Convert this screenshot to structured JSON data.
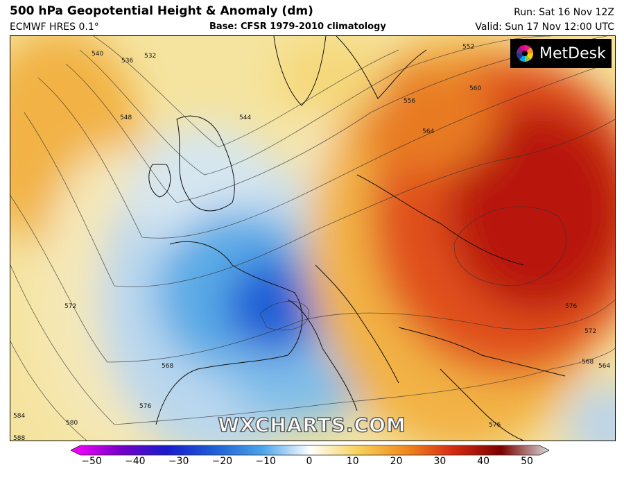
{
  "header": {
    "title": "500 hPa Geopotential Height & Anomaly (dm)",
    "model": "ECMWF HRES 0.1°",
    "base": "Base: CFSR 1979-2010 climatology",
    "run": "Run: Sat 16 Nov 12Z",
    "valid": "Valid: Sun 17 Nov 12:00 UTC"
  },
  "logo": {
    "text": "MetDesk"
  },
  "watermark": "WXCHARTS.COM",
  "contour_labels": [
    "540",
    "536",
    "532",
    "548",
    "544",
    "552",
    "556",
    "560",
    "564",
    "572",
    "576",
    "580",
    "584",
    "588",
    "568",
    "576",
    "572",
    "568",
    "564",
    "576"
  ],
  "colorbar": {
    "ticks": [
      "−50",
      "−40",
      "−30",
      "−20",
      "−10",
      "0",
      "10",
      "20",
      "30",
      "40",
      "50"
    ],
    "colors": [
      "#ff00ff",
      "#7a00c8",
      "#1a1acc",
      "#1e5fd6",
      "#4aa3e8",
      "#ffffff",
      "#f7d25a",
      "#f08a1e",
      "#d42a12",
      "#7a0000",
      "#d9d9d9"
    ]
  },
  "map": {
    "anomaly_palette": {
      "strong_negative": "#1a4fc8",
      "negative": "#5aaae6",
      "neutral": "#eef3f6",
      "weak_positive": "#f5e4a0",
      "positive": "#f2b244",
      "strong_positive": "#e0501a",
      "very_strong_positive": "#b81608"
    }
  }
}
